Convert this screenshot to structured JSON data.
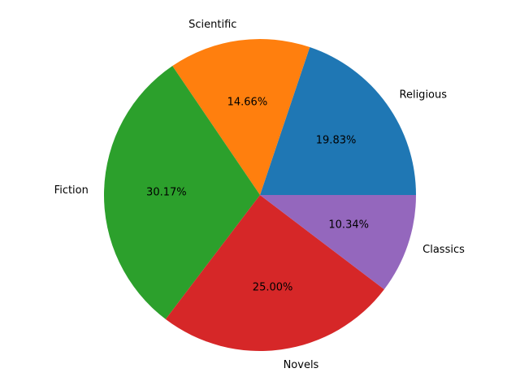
{
  "chart_data": {
    "type": "pie",
    "categories": [
      "Religious",
      "Scientific",
      "Fiction",
      "Novels",
      "Classics"
    ],
    "values": [
      19.83,
      14.66,
      30.17,
      25.0,
      10.34
    ],
    "percent_labels": [
      "19.83%",
      "14.66%",
      "30.17%",
      "25.00%",
      "10.34%"
    ],
    "colors": [
      "#1f77b4",
      "#ff7f0e",
      "#2ca02c",
      "#d62728",
      "#9467bd"
    ],
    "start_angle_deg": 0,
    "direction": "counterclockwise",
    "title": "",
    "legend": "none"
  }
}
